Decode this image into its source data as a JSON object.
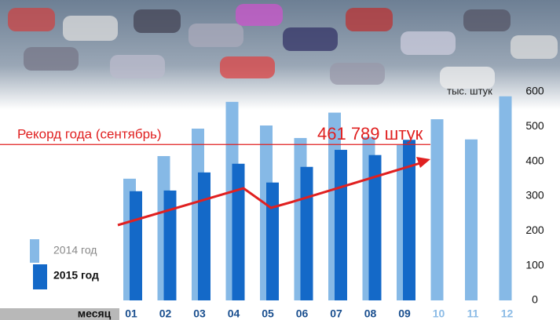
{
  "chart_data": {
    "type": "bar",
    "y_label": "тыс. штук",
    "x_label": "месяц",
    "annotation": "Рекорд года (сентябрь)",
    "annotation_value": "461 789 штук",
    "categories": [
      "01",
      "02",
      "03",
      "04",
      "05",
      "06",
      "07",
      "08",
      "09",
      "10",
      "11",
      "12"
    ],
    "series": [
      {
        "name": "2014 год",
        "color": "#86b9e6",
        "values": [
          350,
          415,
          494,
          571,
          503,
          467,
          540,
          470,
          447,
          521,
          463,
          587
        ]
      },
      {
        "name": "2015 год",
        "color": "#1469c8",
        "values": [
          314,
          316,
          368,
          393,
          339,
          384,
          433,
          418,
          461.789,
          null,
          null,
          null
        ]
      }
    ],
    "ylim": [
      0,
      600
    ],
    "yticks": [
      0,
      100,
      200,
      300,
      400,
      500,
      600
    ]
  }
}
